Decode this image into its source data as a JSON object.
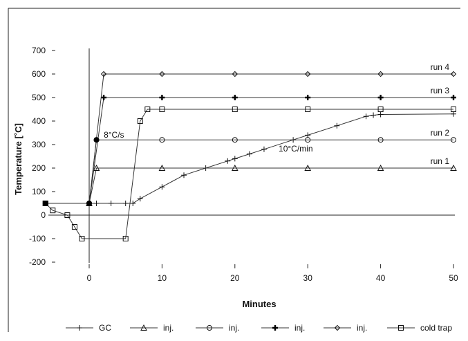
{
  "chart_data": {
    "type": "line",
    "xlabel": "Minutes",
    "ylabel": "Temperature [˚C]",
    "xlim": [
      -6,
      50
    ],
    "ylim": [
      -200,
      700
    ],
    "x_ticks": [
      0,
      10,
      20,
      30,
      40,
      50
    ],
    "y_ticks": [
      -200,
      -100,
      0,
      100,
      200,
      300,
      400,
      500,
      600,
      700
    ],
    "grid": false,
    "legend_position": "bottom",
    "annotations": [
      {
        "text": "8°C/s",
        "x": 2,
        "y": 330
      },
      {
        "text": "10°C/min",
        "x": 26,
        "y": 270
      }
    ],
    "series": [
      {
        "name": "GC",
        "marker": "plus",
        "label": "",
        "points": [
          [
            -6,
            50
          ],
          [
            0,
            50
          ],
          [
            1,
            50
          ],
          [
            3,
            50
          ],
          [
            5,
            50
          ],
          [
            6,
            50
          ],
          [
            7,
            70
          ],
          [
            10,
            120
          ],
          [
            13,
            170
          ],
          [
            16,
            200
          ],
          [
            19,
            230
          ],
          [
            20,
            240
          ],
          [
            22,
            260
          ],
          [
            24,
            280
          ],
          [
            28,
            320
          ],
          [
            30,
            340
          ],
          [
            34,
            380
          ],
          [
            38,
            420
          ],
          [
            39,
            425
          ],
          [
            40,
            428
          ],
          [
            50,
            430
          ]
        ]
      },
      {
        "name": "inj.",
        "marker": "triangle",
        "label": "run 1",
        "points": [
          [
            0,
            50
          ],
          [
            1,
            200
          ],
          [
            10,
            200
          ],
          [
            20,
            200
          ],
          [
            30,
            200
          ],
          [
            40,
            200
          ],
          [
            50,
            200
          ]
        ]
      },
      {
        "name": "inj.",
        "marker": "circle",
        "label": "run 2",
        "points": [
          [
            0,
            50
          ],
          [
            1,
            320
          ],
          [
            10,
            320
          ],
          [
            20,
            320
          ],
          [
            30,
            320
          ],
          [
            40,
            320
          ],
          [
            50,
            320
          ]
        ]
      },
      {
        "name": "inj.",
        "marker": "bold-plus",
        "label": "run 3",
        "points": [
          [
            0,
            50
          ],
          [
            2,
            500
          ],
          [
            10,
            500
          ],
          [
            20,
            500
          ],
          [
            30,
            500
          ],
          [
            40,
            500
          ],
          [
            50,
            500
          ]
        ]
      },
      {
        "name": "inj.",
        "marker": "diamond",
        "label": "run 4",
        "points": [
          [
            0,
            50
          ],
          [
            2,
            600
          ],
          [
            10,
            600
          ],
          [
            20,
            600
          ],
          [
            30,
            600
          ],
          [
            40,
            600
          ],
          [
            50,
            600
          ]
        ]
      },
      {
        "name": "cold trap",
        "marker": "square",
        "label": "",
        "points": [
          [
            -6,
            50
          ],
          [
            -5,
            20
          ],
          [
            -3,
            0
          ],
          [
            -2,
            -50
          ],
          [
            -1,
            -100
          ],
          [
            5,
            -100
          ],
          [
            7,
            400
          ],
          [
            8,
            450
          ],
          [
            10,
            450
          ],
          [
            20,
            450
          ],
          [
            30,
            450
          ],
          [
            40,
            450
          ],
          [
            50,
            450
          ]
        ]
      }
    ],
    "special_points": [
      {
        "x": -6,
        "y": 50,
        "marker": "filled-square"
      },
      {
        "x": 0,
        "y": 50,
        "marker": "filled-circle"
      },
      {
        "x": 1,
        "y": 320,
        "marker": "filled-circle"
      }
    ]
  }
}
